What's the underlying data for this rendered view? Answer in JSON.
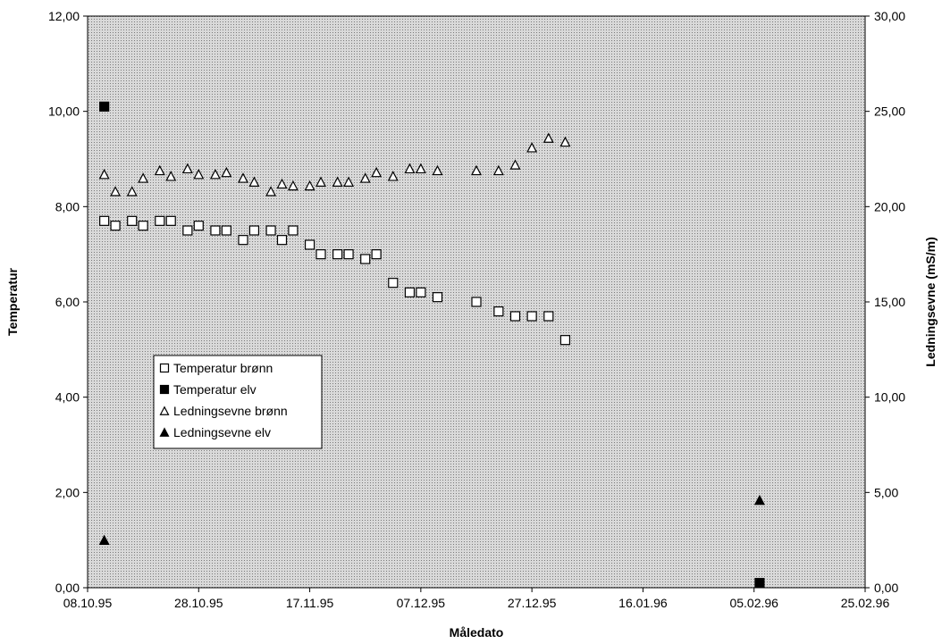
{
  "chart_data": {
    "type": "scatter",
    "xlabel": "Måledato",
    "ylabel_left": "Temperatur",
    "ylabel_right": "Ledningsevne (mS/m)",
    "x_ticks": [
      "08.10.95",
      "28.10.95",
      "17.11.95",
      "07.12.95",
      "27.12.95",
      "16.01.96",
      "05.02.96",
      "25.02.96"
    ],
    "x_range": [
      "1995-10-08",
      "1996-02-25"
    ],
    "y_left_ticks": [
      "0,00",
      "2,00",
      "4,00",
      "6,00",
      "8,00",
      "10,00",
      "12,00"
    ],
    "y_left_range": [
      0,
      12
    ],
    "y_right_ticks": [
      "0,00",
      "5,00",
      "10,00",
      "15,00",
      "20,00",
      "25,00",
      "30,00"
    ],
    "y_right_range": [
      0,
      30
    ],
    "grid": false,
    "background": "dotted grey",
    "legend_position": "lower-left",
    "series": [
      {
        "name": "Temperatur brønn",
        "marker": "open-square",
        "axis": "left",
        "x": [
          "1995-10-11",
          "1995-10-13",
          "1995-10-16",
          "1995-10-18",
          "1995-10-21",
          "1995-10-23",
          "1995-10-26",
          "1995-10-28",
          "1995-10-31",
          "1995-11-02",
          "1995-11-05",
          "1995-11-07",
          "1995-11-10",
          "1995-11-12",
          "1995-11-14",
          "1995-11-17",
          "1995-11-19",
          "1995-11-22",
          "1995-11-24",
          "1995-11-27",
          "1995-11-29",
          "1995-12-02",
          "1995-12-05",
          "1995-12-07",
          "1995-12-10",
          "1995-12-17",
          "1995-12-21",
          "1995-12-24",
          "1995-12-27",
          "1995-12-30",
          "1996-01-02",
          "1996-01-06",
          "1996-01-09",
          "1996-01-11",
          "1996-01-14",
          "1996-01-16",
          "1996-01-19",
          "1996-01-24",
          "1996-02-02"
        ],
        "y": [
          7.7,
          7.6,
          7.7,
          7.6,
          7.7,
          7.7,
          7.5,
          7.6,
          7.5,
          7.5,
          7.3,
          7.5,
          7.5,
          7.3,
          7.5,
          7.2,
          7.0,
          7.0,
          7.0,
          6.9,
          7.0,
          6.4,
          6.2,
          6.2,
          6.1,
          6.0,
          5.8,
          5.7,
          5.7,
          5.7,
          5.2,
          null,
          null,
          null,
          null,
          null,
          null,
          null,
          null
        ]
      },
      {
        "name": "Temperatur elv",
        "marker": "filled-square",
        "axis": "left",
        "x": [
          "1995-10-11",
          "1996-02-06"
        ],
        "y": [
          10.1,
          0.1
        ]
      },
      {
        "name": "Ledningsevne brønn",
        "marker": "open-triangle",
        "axis": "right",
        "x": [
          "1995-10-11",
          "1995-10-13",
          "1995-10-16",
          "1995-10-18",
          "1995-10-21",
          "1995-10-23",
          "1995-10-26",
          "1995-10-28",
          "1995-10-31",
          "1995-11-02",
          "1995-11-05",
          "1995-11-07",
          "1995-11-10",
          "1995-11-12",
          "1995-11-14",
          "1995-11-17",
          "1995-11-19",
          "1995-11-22",
          "1995-11-24",
          "1995-11-27",
          "1995-11-29",
          "1995-12-02",
          "1995-12-05",
          "1995-12-07",
          "1995-12-10",
          "1995-12-17",
          "1995-12-21",
          "1995-12-24",
          "1995-12-27",
          "1995-12-30",
          "1996-01-02",
          "1996-01-06",
          "1996-01-09",
          "1996-01-11",
          "1996-01-14",
          "1996-01-16",
          "1996-01-19",
          "1996-01-24",
          "1996-02-02"
        ],
        "y": [
          21.7,
          20.8,
          20.8,
          21.5,
          21.9,
          21.6,
          22.0,
          21.7,
          21.7,
          21.8,
          21.5,
          21.3,
          20.8,
          21.2,
          21.1,
          21.1,
          21.3,
          21.3,
          21.3,
          21.5,
          21.8,
          21.6,
          22.0,
          22.0,
          21.9,
          21.9,
          21.9,
          22.2,
          23.1,
          23.6,
          23.4,
          null,
          null,
          null,
          null,
          null,
          null,
          null,
          null
        ]
      },
      {
        "name": "Ledningsevne elv",
        "marker": "filled-triangle",
        "axis": "right",
        "x": [
          "1995-10-11",
          "1996-02-06"
        ],
        "y": [
          2.5,
          4.6
        ]
      }
    ]
  }
}
